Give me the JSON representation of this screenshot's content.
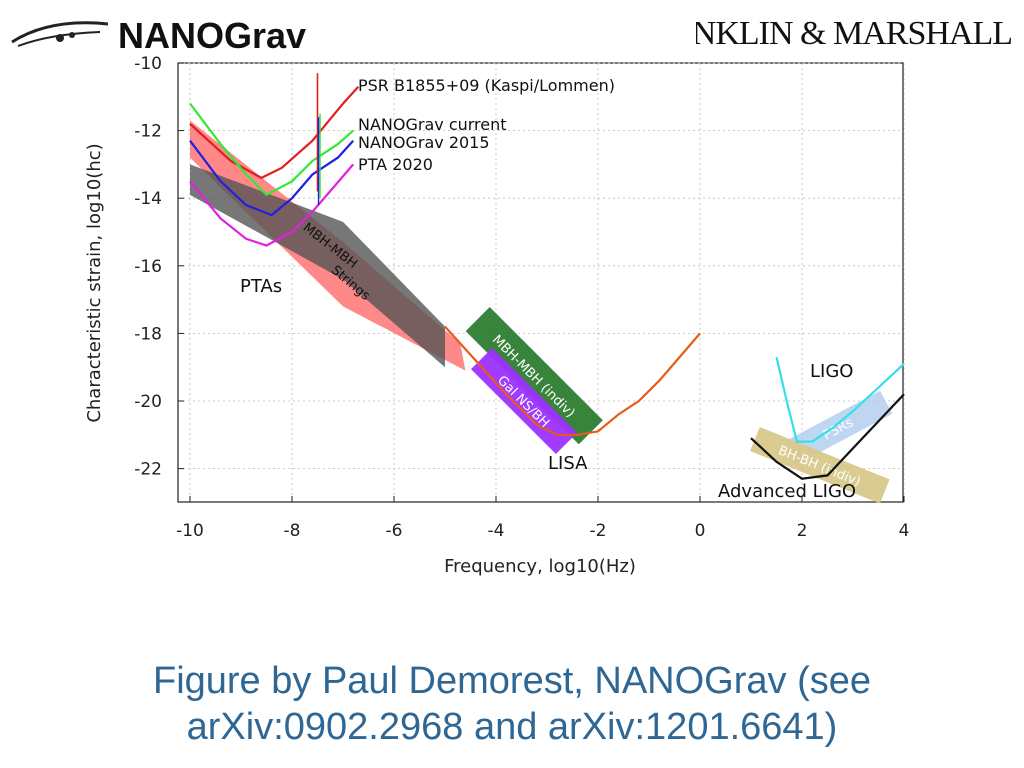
{
  "header": {
    "left_logo_text": "NANOGrav",
    "right_logo_text": "FRANKLIN & MARSHALL"
  },
  "caption": {
    "line1": "Figure by Paul Demorest, NANOGrav (see",
    "line2": "arXiv:0902.2968 and arXiv:1201.6641)"
  },
  "chart_data": {
    "type": "line",
    "xlabel": "Frequency, log10(Hz)",
    "ylabel": "Characteristic strain, log10(hc)",
    "xlim": [
      -10,
      4
    ],
    "ylim": [
      -23,
      -10
    ],
    "xticks": [
      -10,
      -8,
      -6,
      -4,
      -2,
      0,
      2,
      4
    ],
    "yticks": [
      -10,
      -12,
      -14,
      -16,
      -18,
      -20,
      -22
    ],
    "grid": true,
    "legend": "top-center (inline labels)",
    "series": [
      {
        "name": "PSR B1855+09 (Kaspi/Lommen)",
        "color": "#e02020",
        "x": [
          -10,
          -9.2,
          -8.6,
          -8.2,
          -7.6,
          -7.0,
          -6.7
        ],
        "y": [
          -11.8,
          -12.9,
          -13.4,
          -13.1,
          -12.3,
          -11.2,
          -10.7
        ]
      },
      {
        "name": "NANOGrav current",
        "color": "#33e833",
        "x": [
          -10,
          -9.4,
          -8.9,
          -8.5,
          -8.0,
          -7.6,
          -7.1,
          -6.8
        ],
        "y": [
          -11.2,
          -12.4,
          -13.3,
          -13.9,
          -13.5,
          -12.9,
          -12.4,
          -12.0
        ]
      },
      {
        "name": "NANOGrav 2015",
        "color": "#2020e0",
        "x": [
          -10,
          -9.4,
          -8.9,
          -8.4,
          -8.0,
          -7.6,
          -7.1,
          -6.8
        ],
        "y": [
          -12.3,
          -13.5,
          -14.2,
          -14.5,
          -14.0,
          -13.3,
          -12.8,
          -12.3
        ]
      },
      {
        "name": "PTA 2020",
        "color": "#e020e0",
        "x": [
          -10,
          -9.4,
          -8.9,
          -8.5,
          -8.0,
          -7.6,
          -7.2,
          -6.8
        ],
        "y": [
          -13.5,
          -14.6,
          -15.2,
          -15.4,
          -15.0,
          -14.4,
          -13.7,
          -13.0
        ]
      },
      {
        "name": "LISA",
        "color": "#e85a1a",
        "x": [
          -5,
          -4.4,
          -3.8,
          -3.2,
          -2.8,
          -2.4,
          -2.0,
          -1.6,
          -1.2,
          -0.8,
          -0.4,
          0
        ],
        "y": [
          -17.8,
          -18.8,
          -19.8,
          -20.7,
          -21.0,
          -21.0,
          -20.9,
          -20.4,
          -20.0,
          -19.4,
          -18.7,
          -18.0
        ]
      },
      {
        "name": "LIGO",
        "color": "#33e0e8",
        "x": [
          1.5,
          1.7,
          1.9,
          2.2,
          2.6,
          3.0,
          3.5,
          4.0
        ],
        "y": [
          -18.7,
          -20.0,
          -21.2,
          -21.2,
          -20.8,
          -20.3,
          -19.6,
          -18.9
        ]
      },
      {
        "name": "Advanced LIGO",
        "color": "#111111",
        "x": [
          1.0,
          1.5,
          2.0,
          2.5,
          3.0,
          3.5,
          4.0
        ],
        "y": [
          -21.1,
          -21.8,
          -22.3,
          -22.2,
          -21.4,
          -20.6,
          -19.8
        ]
      }
    ],
    "regions": [
      {
        "label": "MBH-MBH",
        "color": "#555555",
        "opacity": 0.8
      },
      {
        "label": "Strings",
        "color": "#ff6060",
        "opacity": 0.75
      },
      {
        "label": "MBH-MBH (indiv)",
        "color": "#2e7d32"
      },
      {
        "label": "Gal NS/BH",
        "color": "#9b30ff"
      },
      {
        "label": "PSRs",
        "color": "#aac8ee"
      },
      {
        "label": "BH-BH (indiv)",
        "color": "#d8c88a"
      }
    ],
    "annotations": [
      "PTAs",
      "LISA",
      "LIGO",
      "Advanced LIGO"
    ]
  }
}
